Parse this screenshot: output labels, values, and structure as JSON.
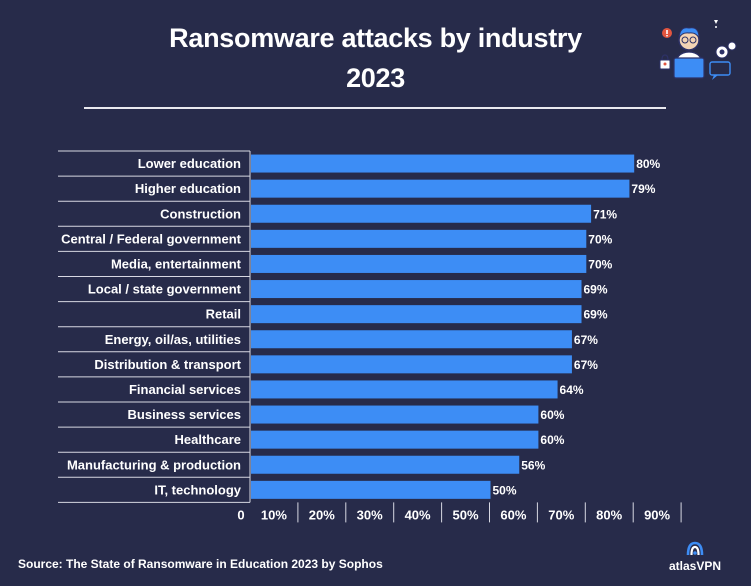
{
  "title": {
    "line1": "Ransomware attacks by industry",
    "line2": "2023"
  },
  "source": "Source: The State of Ransomware in Education 2023 by Sophos",
  "brand": "atlasVPN",
  "colors": {
    "background": "#272b4a",
    "bar": "#3d8df5",
    "text": "#ffffff",
    "gridline": "#d7d8e2"
  },
  "chart_data": {
    "type": "bar",
    "orientation": "horizontal",
    "title": "Ransomware attacks by industry 2023",
    "categories": [
      "Lower education",
      "Higher education",
      "Construction",
      "Central / Federal government",
      "Media, entertainment",
      "Local / state government",
      "Retail",
      "Energy, oil/as, utilities",
      "Distribution & transport",
      "Financial services",
      "Business services",
      "Healthcare",
      "Manufacturing & production",
      "IT, technology"
    ],
    "values": [
      80,
      79,
      71,
      70,
      70,
      69,
      69,
      67,
      67,
      64,
      60,
      60,
      56,
      50
    ],
    "value_labels": [
      "80%",
      "79%",
      "71%",
      "70%",
      "70%",
      "69%",
      "69%",
      "67%",
      "67%",
      "64%",
      "60%",
      "60%",
      "56%",
      "50%"
    ],
    "xlim": [
      0,
      90
    ],
    "xticks": [
      0,
      10,
      20,
      30,
      40,
      50,
      60,
      70,
      80,
      90
    ],
    "xtick_labels": [
      "0",
      "10%",
      "20%",
      "30%",
      "40%",
      "50%",
      "60%",
      "70%",
      "80%",
      "90%"
    ],
    "xlabel": "",
    "ylabel": ""
  }
}
